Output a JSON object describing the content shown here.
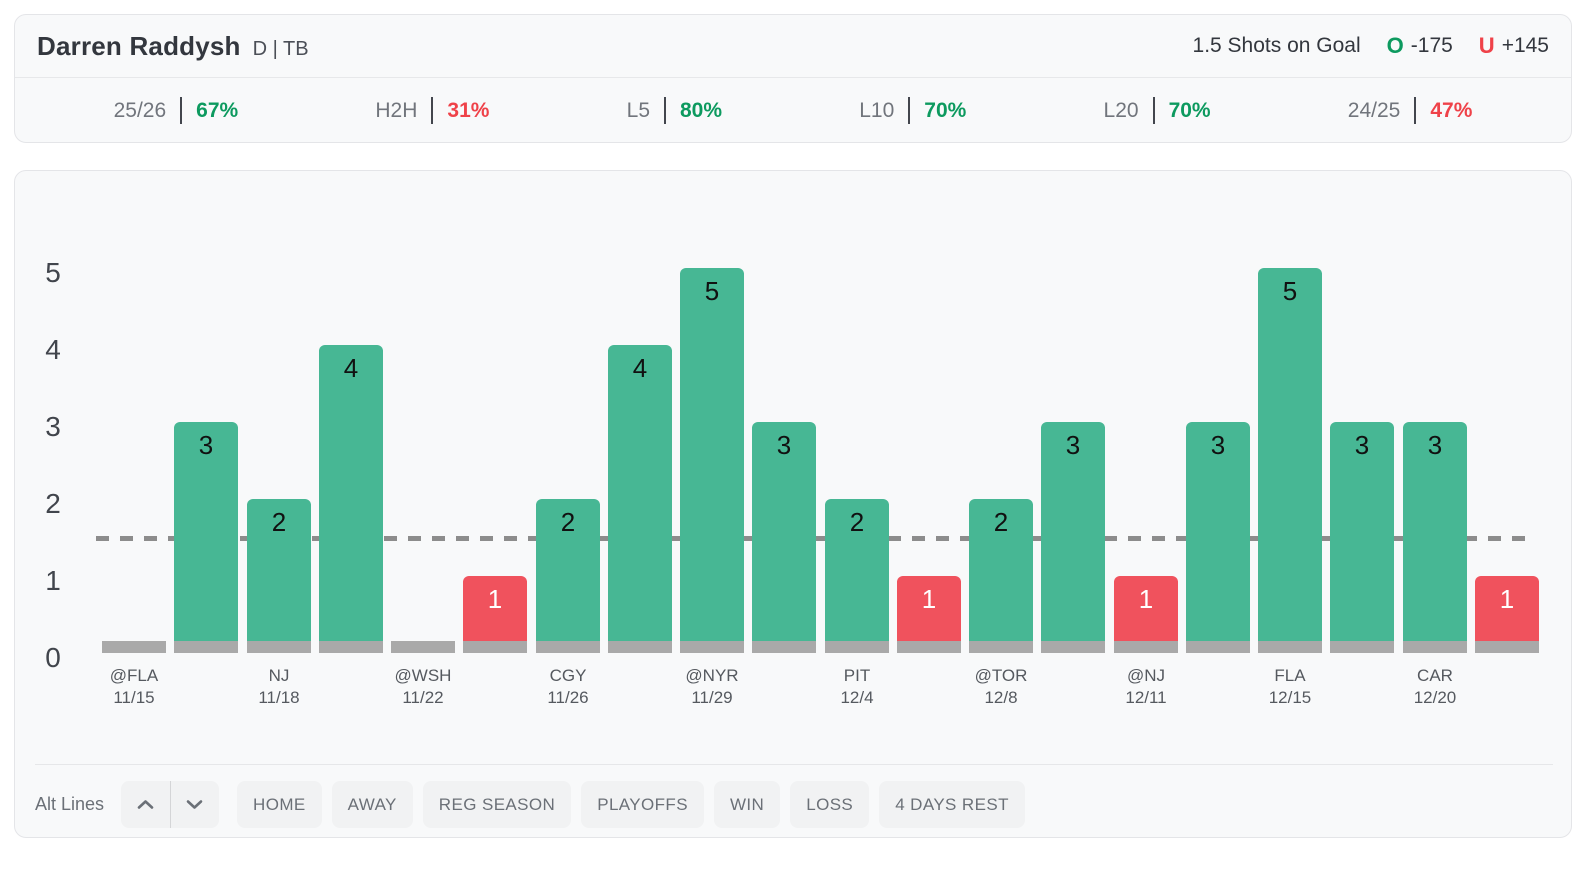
{
  "header": {
    "player_name": "Darren Raddysh",
    "position_team": "D | TB",
    "prop_line": "1.5 Shots on Goal",
    "over": {
      "letter": "O",
      "odds": "-175"
    },
    "under": {
      "letter": "U",
      "odds": "+145"
    },
    "stats": [
      {
        "label": "25/26",
        "value": "67%",
        "status": "pos"
      },
      {
        "label": "H2H",
        "value": "31%",
        "status": "neg"
      },
      {
        "label": "L5",
        "value": "80%",
        "status": "pos"
      },
      {
        "label": "L10",
        "value": "70%",
        "status": "pos"
      },
      {
        "label": "L20",
        "value": "70%",
        "status": "pos"
      },
      {
        "label": "24/25",
        "value": "47%",
        "status": "neg"
      }
    ]
  },
  "chart_data": {
    "type": "bar",
    "title": "Shots on goal by game",
    "ylim": [
      0,
      5
    ],
    "yticks": [
      0,
      1,
      2,
      3,
      4,
      5
    ],
    "threshold_line": 1.5,
    "grid": false,
    "legend": "none",
    "games": [
      {
        "value": 0,
        "opponent": "@FLA",
        "date": "11/15"
      },
      {
        "value": 3
      },
      {
        "value": 2,
        "opponent": "NJ",
        "date": "11/18"
      },
      {
        "value": 4
      },
      {
        "value": 0,
        "opponent": "@WSH",
        "date": "11/22"
      },
      {
        "value": 1
      },
      {
        "value": 2,
        "opponent": "CGY",
        "date": "11/26"
      },
      {
        "value": 4
      },
      {
        "value": 5,
        "opponent": "@NYR",
        "date": "11/29"
      },
      {
        "value": 3
      },
      {
        "value": 2,
        "opponent": "PIT",
        "date": "12/4"
      },
      {
        "value": 1
      },
      {
        "value": 2,
        "opponent": "@TOR",
        "date": "12/8"
      },
      {
        "value": 3
      },
      {
        "value": 1,
        "opponent": "@NJ",
        "date": "12/11"
      },
      {
        "value": 3
      },
      {
        "value": 5,
        "opponent": "FLA",
        "date": "12/15"
      },
      {
        "value": 3
      },
      {
        "value": 3,
        "opponent": "CAR",
        "date": "12/20"
      },
      {
        "value": 1
      }
    ],
    "colors": {
      "over_bar": "#47b794",
      "under_bar": "#f0525d",
      "zero_base": "#a9a9a9",
      "threshold": "#8c8c8c",
      "over_text": "#0d9a5f",
      "under_text": "#ef4249",
      "label_on_over": "#111111",
      "label_on_under": "#ffffff"
    }
  },
  "footer": {
    "alt_lines_label": "Alt Lines",
    "filters": [
      "HOME",
      "AWAY",
      "REG SEASON",
      "PLAYOFFS",
      "WIN",
      "LOSS",
      "4 DAYS REST"
    ]
  }
}
